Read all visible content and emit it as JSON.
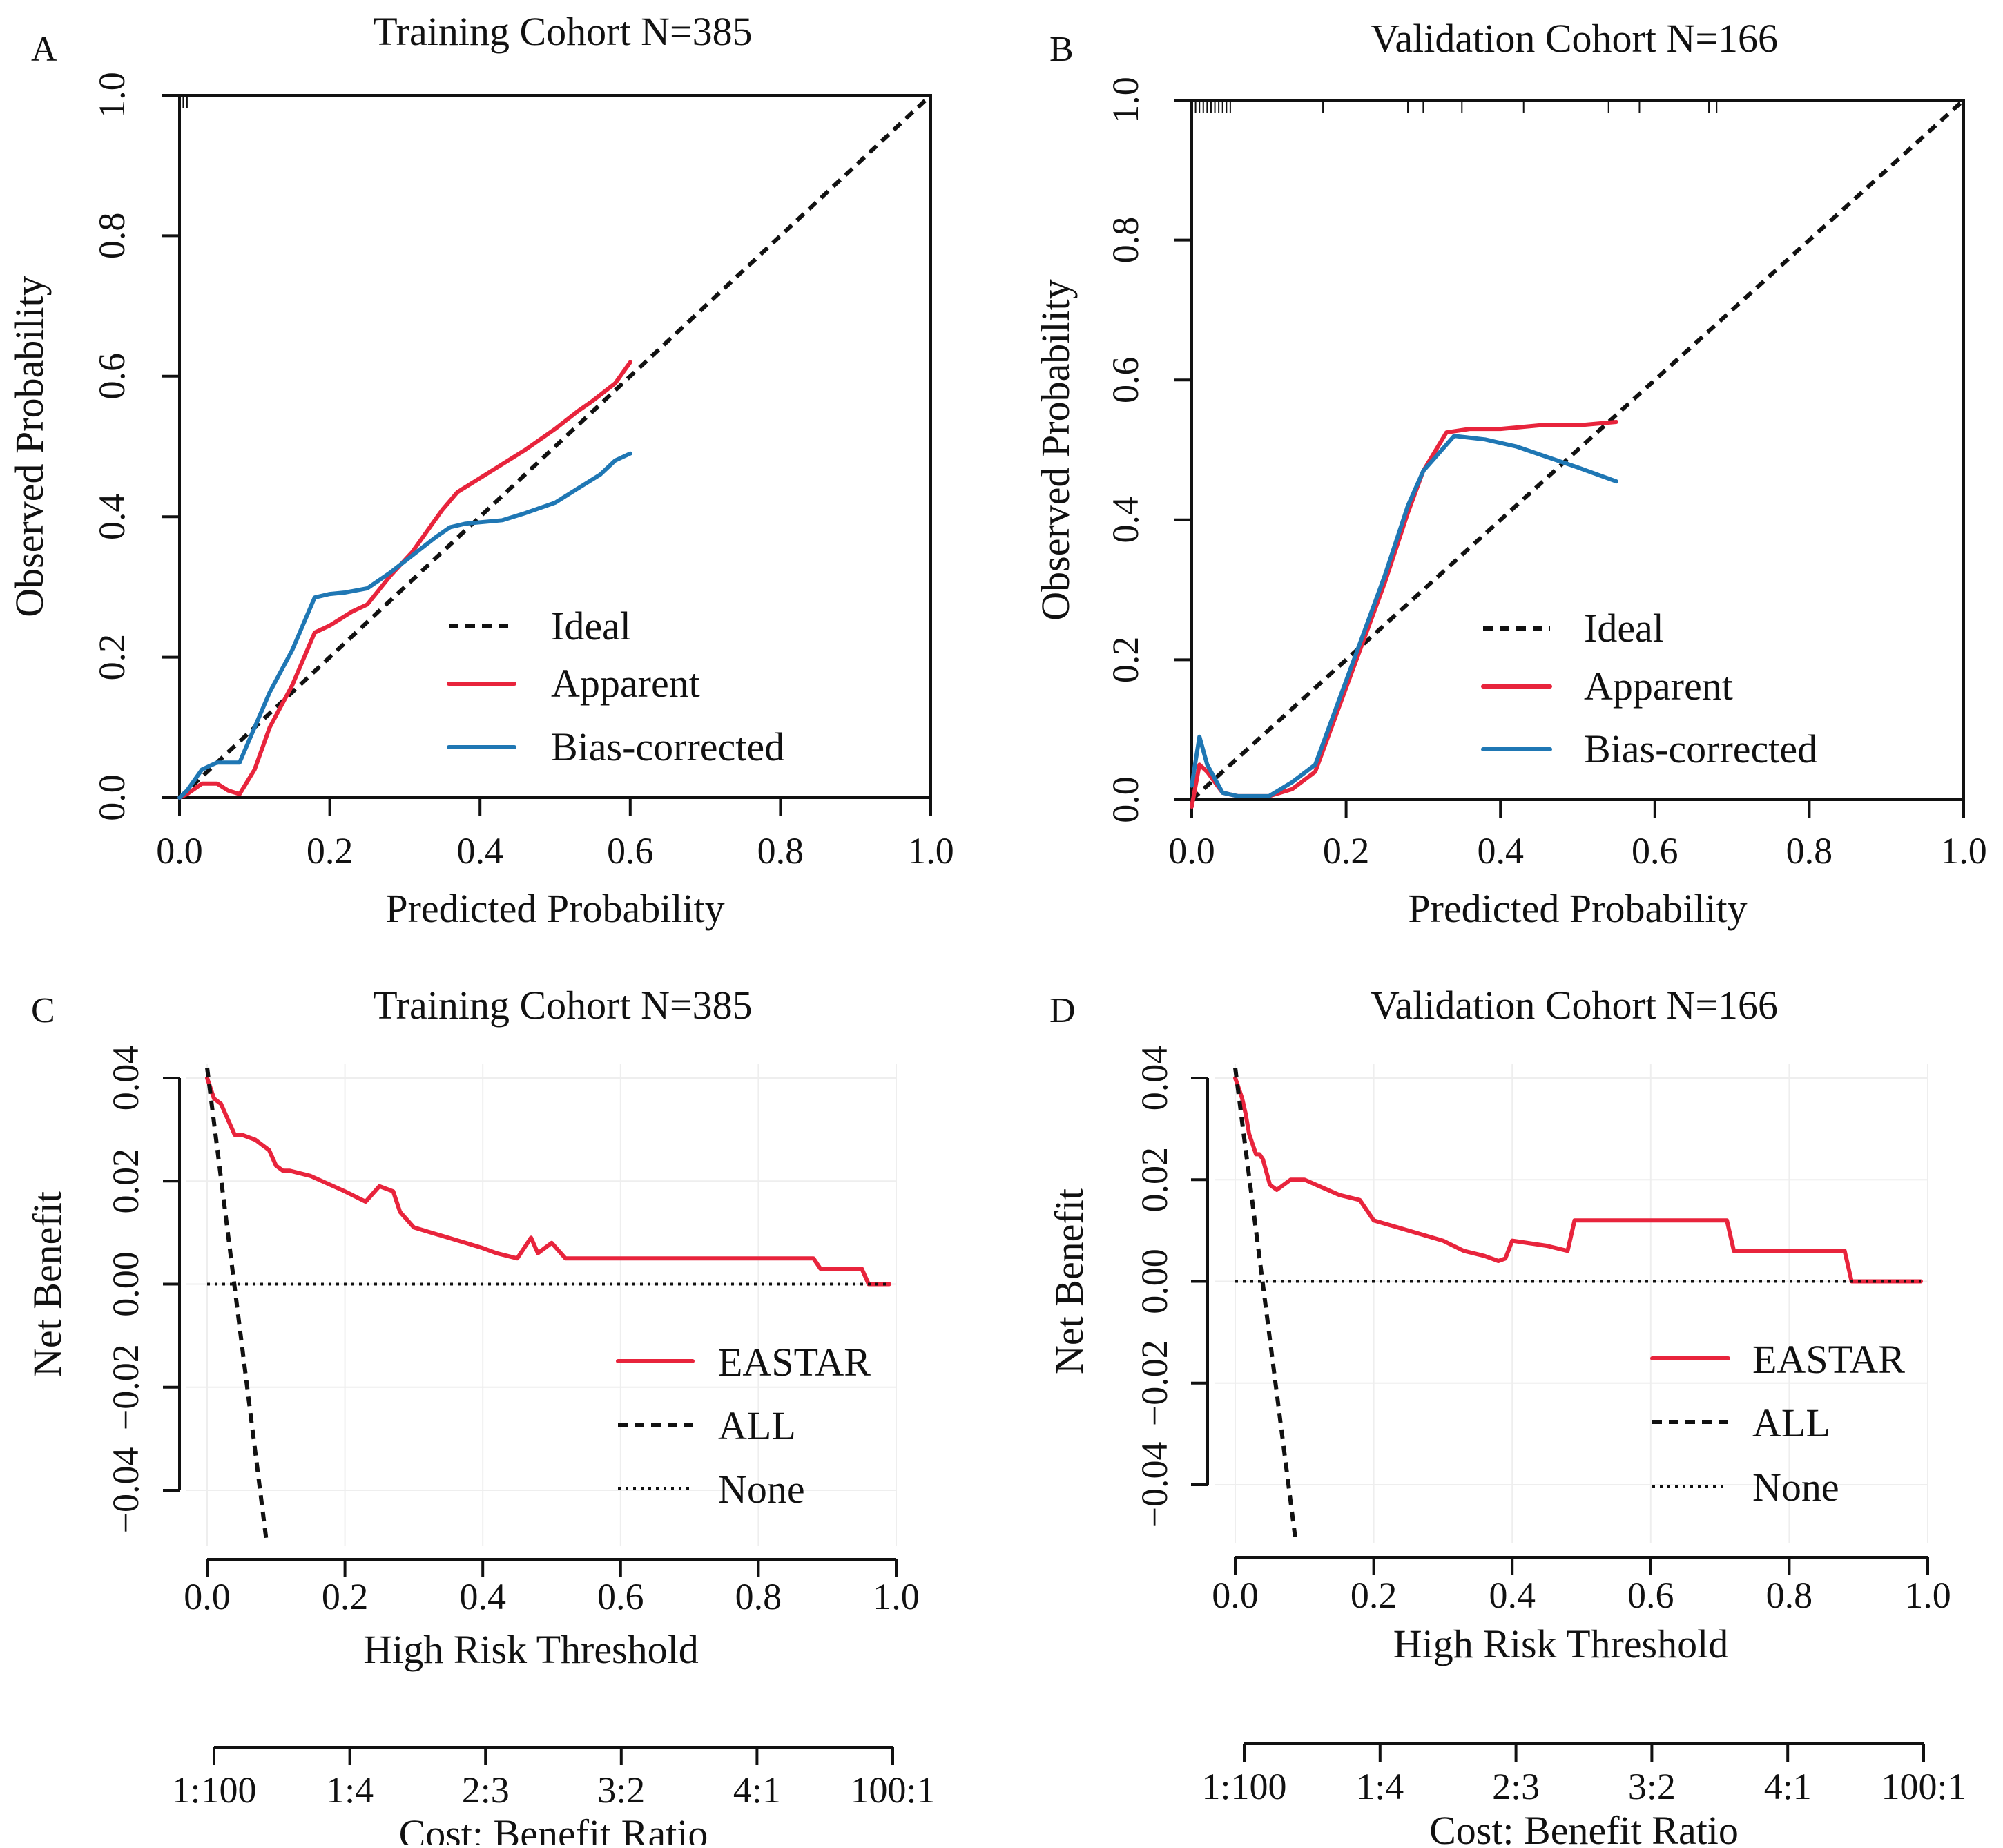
{
  "colors": {
    "apparent": "#e8243c",
    "bias": "#1f77b4",
    "ink": "#111111",
    "grid": "#eeeeee"
  },
  "chart_data": [
    {
      "panel": "A",
      "type": "line",
      "title": "Training Cohort  N=385",
      "xlabel": "Predicted Probability",
      "ylabel": "Observed Probability",
      "xlim": [
        0,
        1
      ],
      "ylim": [
        0,
        1
      ],
      "xticks": [
        "0.0",
        "0.2",
        "0.4",
        "0.6",
        "0.8",
        "1.0"
      ],
      "yticks": [
        "0.0",
        "0.2",
        "0.4",
        "0.6",
        "0.8",
        "1.0"
      ],
      "legend_position": "bottom-right",
      "legend": [
        "Ideal",
        "Apparent",
        "Bias-corrected"
      ],
      "rug_x": [
        0.005,
        0.01
      ],
      "series": [
        {
          "name": "Ideal",
          "style": "dashed",
          "x": [
            0,
            1
          ],
          "y": [
            0,
            1
          ]
        },
        {
          "name": "Apparent",
          "style": "red",
          "x": [
            0.0,
            0.01,
            0.03,
            0.05,
            0.065,
            0.08,
            0.1,
            0.12,
            0.15,
            0.18,
            0.2,
            0.23,
            0.25,
            0.28,
            0.31,
            0.33,
            0.35,
            0.37,
            0.4,
            0.43,
            0.46,
            0.5,
            0.53,
            0.55,
            0.58,
            0.6
          ],
          "y": [
            0.0,
            0.005,
            0.02,
            0.02,
            0.01,
            0.005,
            0.04,
            0.1,
            0.16,
            0.235,
            0.245,
            0.265,
            0.275,
            0.315,
            0.35,
            0.38,
            0.41,
            0.435,
            0.455,
            0.475,
            0.495,
            0.525,
            0.55,
            0.565,
            0.59,
            0.62
          ]
        },
        {
          "name": "Bias-corrected",
          "style": "blue",
          "x": [
            0.0,
            0.01,
            0.03,
            0.05,
            0.08,
            0.1,
            0.12,
            0.15,
            0.18,
            0.2,
            0.22,
            0.25,
            0.28,
            0.31,
            0.34,
            0.36,
            0.38,
            0.4,
            0.43,
            0.46,
            0.5,
            0.53,
            0.56,
            0.58,
            0.6
          ],
          "y": [
            0.0,
            0.01,
            0.04,
            0.05,
            0.05,
            0.1,
            0.15,
            0.21,
            0.285,
            0.29,
            0.292,
            0.298,
            0.32,
            0.345,
            0.37,
            0.385,
            0.39,
            0.392,
            0.395,
            0.405,
            0.42,
            0.44,
            0.46,
            0.48,
            0.49
          ]
        }
      ]
    },
    {
      "panel": "B",
      "type": "line",
      "title": "Validation Cohort  N=166",
      "xlabel": "Predicted Probability",
      "ylabel": "Observed  Probability",
      "xlim": [
        0,
        1
      ],
      "ylim": [
        0,
        1
      ],
      "xticks": [
        "0.0",
        "0.2",
        "0.4",
        "0.6",
        "0.8",
        "1.0"
      ],
      "yticks": [
        "0.0",
        "0.2",
        "0.4",
        "0.6",
        "0.8",
        "1.0"
      ],
      "legend_position": "bottom-right",
      "legend": [
        "Ideal",
        "Apparent",
        "Bias-corrected"
      ],
      "rug_x": [
        0.0,
        0.005,
        0.01,
        0.015,
        0.02,
        0.025,
        0.03,
        0.035,
        0.04,
        0.045,
        0.05,
        0.17,
        0.28,
        0.3,
        0.35,
        0.43,
        0.54,
        0.58,
        0.67,
        0.68
      ],
      "series": [
        {
          "name": "Ideal",
          "style": "dashed",
          "x": [
            0,
            1
          ],
          "y": [
            0,
            1
          ]
        },
        {
          "name": "Apparent",
          "style": "red",
          "x": [
            0.0,
            0.01,
            0.02,
            0.04,
            0.06,
            0.1,
            0.13,
            0.16,
            0.19,
            0.22,
            0.25,
            0.28,
            0.3,
            0.33,
            0.36,
            0.4,
            0.45,
            0.5,
            0.55
          ],
          "y": [
            -0.01,
            0.05,
            0.04,
            0.01,
            0.005,
            0.005,
            0.015,
            0.04,
            0.13,
            0.22,
            0.31,
            0.41,
            0.47,
            0.525,
            0.53,
            0.53,
            0.535,
            0.535,
            0.54
          ]
        },
        {
          "name": "Bias-corrected",
          "style": "blue",
          "x": [
            0.0,
            0.01,
            0.02,
            0.04,
            0.06,
            0.1,
            0.13,
            0.16,
            0.19,
            0.22,
            0.25,
            0.28,
            0.3,
            0.34,
            0.38,
            0.42,
            0.46,
            0.5,
            0.55
          ],
          "y": [
            0.02,
            0.09,
            0.05,
            0.01,
            0.005,
            0.005,
            0.025,
            0.05,
            0.14,
            0.23,
            0.32,
            0.42,
            0.47,
            0.52,
            0.515,
            0.505,
            0.49,
            0.475,
            0.455
          ]
        }
      ]
    },
    {
      "panel": "C",
      "type": "line",
      "title": "Training Cohort  N=385",
      "xlabel": "High Risk Threshold",
      "ylabel": "Net Benefit",
      "x2label": "Cost: Benefit Ratio",
      "xlim": [
        0,
        1
      ],
      "ylim": [
        -0.05,
        0.045
      ],
      "xticks": [
        "0.0",
        "0.2",
        "0.4",
        "0.6",
        "0.8",
        "1.0"
      ],
      "yticks": [
        "−0.04",
        "−0.02",
        "0.00",
        "0.02",
        "0.04"
      ],
      "x2ticks": [
        "1:100",
        "1:4",
        "2:3",
        "3:2",
        "4:1",
        "100:1"
      ],
      "legend_position": "bottom-right",
      "legend": [
        "EASTAR",
        "ALL",
        "None"
      ],
      "series": [
        {
          "name": "EASTAR",
          "style": "red",
          "x": [
            0.0,
            0.01,
            0.02,
            0.03,
            0.04,
            0.05,
            0.07,
            0.08,
            0.09,
            0.1,
            0.11,
            0.12,
            0.15,
            0.2,
            0.23,
            0.25,
            0.27,
            0.28,
            0.3,
            0.35,
            0.4,
            0.42,
            0.45,
            0.47,
            0.48,
            0.5,
            0.52,
            0.6,
            0.7,
            0.8,
            0.88,
            0.89,
            0.95,
            0.96,
            0.99
          ],
          "y": [
            0.04,
            0.036,
            0.035,
            0.032,
            0.029,
            0.029,
            0.028,
            0.027,
            0.026,
            0.023,
            0.022,
            0.022,
            0.021,
            0.018,
            0.016,
            0.019,
            0.018,
            0.014,
            0.011,
            0.009,
            0.007,
            0.006,
            0.005,
            0.009,
            0.006,
            0.008,
            0.005,
            0.005,
            0.005,
            0.005,
            0.005,
            0.003,
            0.003,
            0.0,
            0.0
          ]
        },
        {
          "name": "ALL",
          "style": "dashed",
          "x": [
            0.0,
            0.09
          ],
          "y": [
            0.042,
            -0.054
          ]
        },
        {
          "name": "None",
          "style": "dotted",
          "x": [
            0.0,
            0.99
          ],
          "y": [
            0,
            0
          ]
        }
      ]
    },
    {
      "panel": "D",
      "type": "line",
      "title": "Validation Cohort  N=166",
      "xlabel": "High Risk Threshold",
      "ylabel": "Net Benefit",
      "x2label": "Cost: Benefit Ratio",
      "xlim": [
        0,
        1
      ],
      "ylim": [
        -0.05,
        0.045
      ],
      "xticks": [
        "0.0",
        "0.2",
        "0.4",
        "0.6",
        "0.8",
        "1.0"
      ],
      "yticks": [
        "−0.04",
        "−0.02",
        "0.00",
        "0.02",
        "0.04"
      ],
      "x2ticks": [
        "1:100",
        "1:4",
        "2:3",
        "3:2",
        "4:1",
        "100:1"
      ],
      "legend_position": "bottom-right",
      "legend": [
        "EASTAR",
        "ALL",
        "None"
      ],
      "series": [
        {
          "name": "EASTAR",
          "style": "red",
          "x": [
            0.0,
            0.01,
            0.015,
            0.02,
            0.03,
            0.035,
            0.04,
            0.05,
            0.06,
            0.07,
            0.08,
            0.1,
            0.15,
            0.18,
            0.2,
            0.25,
            0.3,
            0.33,
            0.36,
            0.38,
            0.39,
            0.4,
            0.45,
            0.48,
            0.49,
            0.5,
            0.55,
            0.6,
            0.65,
            0.7,
            0.71,
            0.72,
            0.75,
            0.8,
            0.85,
            0.88,
            0.89,
            0.95,
            0.99
          ],
          "y": [
            0.04,
            0.036,
            0.033,
            0.029,
            0.025,
            0.025,
            0.024,
            0.019,
            0.018,
            0.019,
            0.02,
            0.02,
            0.017,
            0.016,
            0.012,
            0.01,
            0.008,
            0.006,
            0.005,
            0.004,
            0.0045,
            0.008,
            0.007,
            0.006,
            0.012,
            0.012,
            0.012,
            0.012,
            0.012,
            0.012,
            0.012,
            0.006,
            0.006,
            0.006,
            0.006,
            0.006,
            0.0,
            0.0,
            0.0
          ]
        },
        {
          "name": "ALL",
          "style": "dashed",
          "x": [
            0.0,
            0.09
          ],
          "y": [
            0.042,
            -0.054
          ]
        },
        {
          "name": "None",
          "style": "dotted",
          "x": [
            0.0,
            0.99
          ],
          "y": [
            0,
            0
          ]
        }
      ]
    }
  ]
}
